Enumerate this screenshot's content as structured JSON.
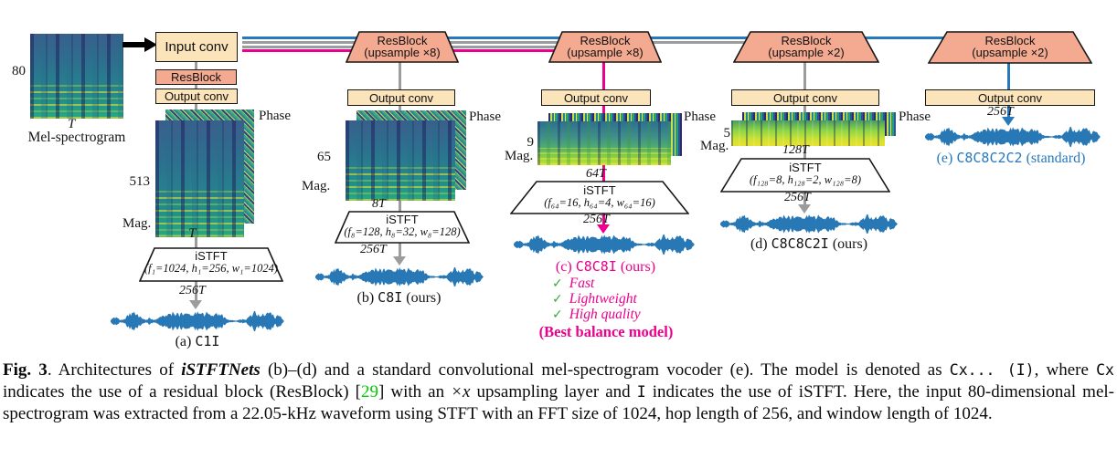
{
  "colors": {
    "box_peach": "#fbe3ba",
    "block_salmon": "#f4aa90",
    "line_blue": "#2779bd",
    "line_gray": "#9c9c9c",
    "line_magenta": "#ec008c",
    "waveform_blue": "#2878b5",
    "check_green": "#3aa83a",
    "citation_green": "#00c800"
  },
  "figure": {
    "mel": {
      "dim": "80",
      "time": "T",
      "label": "Mel-spectrogram"
    },
    "stack": {
      "input": "Input conv",
      "res": "ResBlock",
      "out": "Output conv"
    },
    "blocks": {
      "b": {
        "l1": "ResBlock",
        "l2": "(upsample ×8)",
        "out": "Output conv"
      },
      "c": {
        "l1": "ResBlock",
        "l2": "(upsample ×8)",
        "out": "Output conv"
      },
      "d": {
        "l1": "ResBlock",
        "l2": "(upsample ×2)",
        "out": "Output conv"
      },
      "e": {
        "l1": "ResBlock",
        "l2": "(upsample ×2)",
        "out": "Output conv"
      }
    },
    "cols": {
      "a": {
        "freq": "513",
        "mag": "Mag.",
        "phase": "Phase",
        "time": "T",
        "istft": "iSTFT",
        "params": "(f₁=1024, h₁=256, w₁=1024)",
        "out": "256T",
        "cap1": "(a) ",
        "cap2": "C1I",
        "cap3": ""
      },
      "b": {
        "freq": "65",
        "mag": "Mag.",
        "phase": "Phase",
        "time": "8T",
        "istft": "iSTFT",
        "params": "(f₈=128, h₈=32, w₈=128)",
        "out": "256T",
        "cap1": "(b) ",
        "cap2": "C8I",
        "cap3": " (ours)"
      },
      "c": {
        "freq": "9",
        "mag": "Mag.",
        "phase": "Phase",
        "time": "64T",
        "istft": "iSTFT",
        "params": "(f₆₄=16, h₆₄=4, w₆₄=16)",
        "out": "256T",
        "cap1": "(c) ",
        "cap2": "C8C8I",
        "cap3": " (ours)"
      },
      "d": {
        "freq": "5",
        "mag": "Mag.",
        "phase": "Phase",
        "time": "128T",
        "istft": "iSTFT",
        "params": "(f₁₂₈=8, h₁₂₈=2, w₁₂₈=8)",
        "out": "256T",
        "cap1": "(d) ",
        "cap2": "C8C8C2I",
        "cap3": " (ours)"
      },
      "e": {
        "out": "256T",
        "cap1": "(e) ",
        "cap2": "C8C8C2C2",
        "cap3": " (standard)"
      }
    },
    "notes": {
      "checks": [
        {
          "mark": "✓",
          "text": "Fast"
        },
        {
          "mark": "✓",
          "text": "Lightweight"
        },
        {
          "mark": "✓",
          "text": "High quality"
        }
      ],
      "best": "(Best balance model)"
    }
  },
  "caption": {
    "segments": [
      {
        "t": "Fig. 3",
        "s": "b"
      },
      {
        "t": ". Architectures of ",
        "s": "n"
      },
      {
        "t": "iSTFTNets",
        "s": "bi"
      },
      {
        "t": " (b)–(d) and a standard convolutional mel-spectrogram vocoder (e). The model is denoted as ",
        "s": "n"
      },
      {
        "t": "Cx... (I)",
        "s": "m"
      },
      {
        "t": ", where ",
        "s": "n"
      },
      {
        "t": "Cx",
        "s": "m"
      },
      {
        "t": " indicates the use of a residual block (ResBlock) [",
        "s": "n"
      },
      {
        "t": "29",
        "s": "g"
      },
      {
        "t": "] with an ",
        "s": "n"
      },
      {
        "t": "×x",
        "s": "i"
      },
      {
        "t": " upsampling layer and ",
        "s": "n"
      },
      {
        "t": "I",
        "s": "m"
      },
      {
        "t": " indicates the use of iSTFT. Here, the input 80-dimensional mel-spectrogram was extracted from a 22.05-kHz waveform using STFT with an FFT size of 1024, hop length of 256, and window length of 1024.",
        "s": "n"
      }
    ]
  }
}
